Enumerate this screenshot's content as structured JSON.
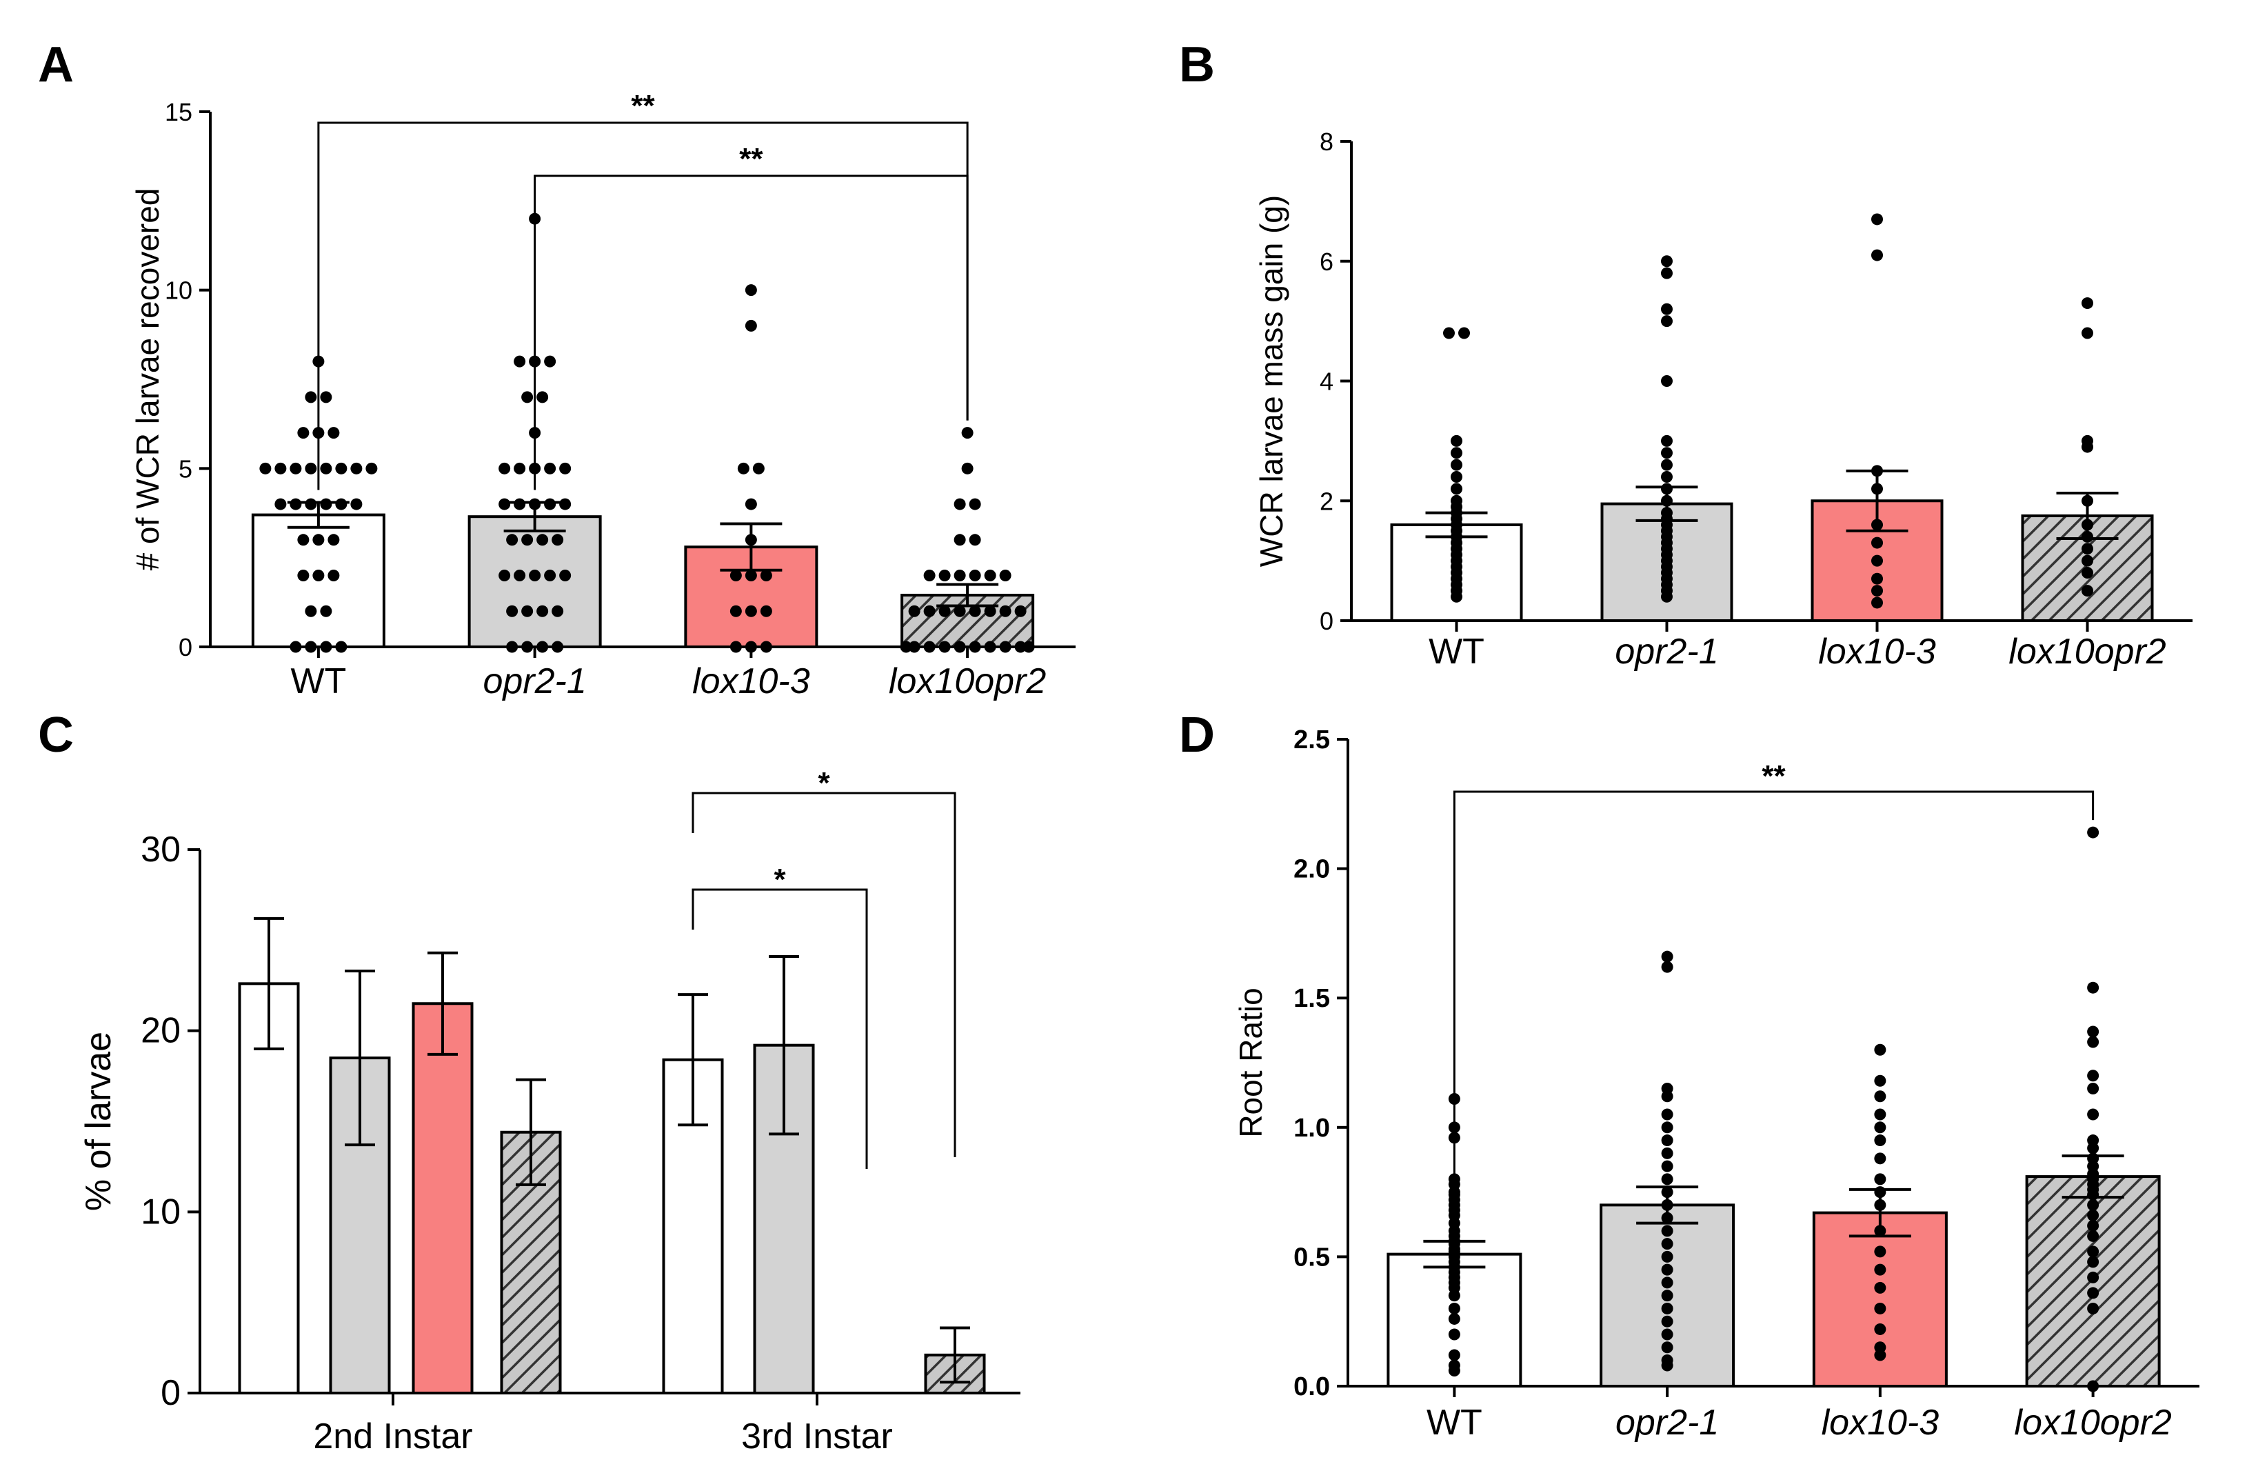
{
  "panels": {
    "A": "A",
    "B": "B",
    "C": "C",
    "D": "D"
  },
  "colors": {
    "wt": "#ffffff",
    "opr2_1": "#d3d3d3",
    "lox10_3": "#f88080",
    "lox10opr2": "hatched-gray"
  },
  "chart_data": [
    {
      "panel": "A",
      "type": "bar",
      "ylabel": "# of WCR larvae recovered",
      "ylim": [
        0,
        15
      ],
      "yticks": [
        0,
        5,
        10,
        15
      ],
      "categories": [
        "WT",
        "opr2-1",
        "lox10-3",
        "lox10opr2"
      ],
      "italic_categories": [
        false,
        true,
        true,
        true
      ],
      "values": [
        3.7,
        3.65,
        2.8,
        1.45
      ],
      "errors": [
        0.35,
        0.4,
        0.65,
        0.3
      ],
      "points": [
        [
          8,
          7,
          7,
          6,
          6,
          6,
          5,
          5,
          5,
          5,
          5,
          5,
          5,
          5,
          4,
          4,
          4,
          4,
          4,
          4,
          3,
          3,
          3,
          2,
          2,
          2,
          1,
          1,
          0,
          0,
          0,
          0
        ],
        [
          12,
          8,
          8,
          8,
          7,
          7,
          6,
          5,
          5,
          5,
          5,
          5,
          4,
          4,
          4,
          4,
          4,
          3,
          3,
          3,
          3,
          2,
          2,
          2,
          2,
          2,
          1,
          1,
          1,
          1,
          0,
          0,
          0,
          0
        ],
        [
          10,
          9,
          5,
          5,
          4,
          3,
          2,
          2,
          2,
          1,
          1,
          1,
          0,
          0,
          0
        ],
        [
          6,
          5,
          4,
          4,
          3,
          3,
          2,
          2,
          2,
          2,
          2,
          2,
          1,
          1,
          1,
          1,
          1,
          1,
          1,
          1,
          0,
          0,
          0,
          0,
          0,
          0,
          0,
          0,
          0,
          0
        ]
      ],
      "significance": [
        {
          "from": 0,
          "to": 3,
          "label": "**"
        },
        {
          "from": 1,
          "to": 3,
          "label": "**"
        }
      ]
    },
    {
      "panel": "B",
      "type": "bar",
      "ylabel": "WCR larvae mass gain (g)",
      "ylim": [
        0,
        8
      ],
      "yticks": [
        0,
        2,
        4,
        6,
        8
      ],
      "categories": [
        "WT",
        "opr2-1",
        "lox10-3",
        "lox10opr2"
      ],
      "italic_categories": [
        false,
        true,
        true,
        true
      ],
      "values": [
        1.6,
        1.95,
        2.0,
        1.75
      ],
      "errors": [
        0.2,
        0.28,
        0.5,
        0.38
      ],
      "points": [
        [
          4.8,
          4.8,
          3.0,
          2.8,
          2.6,
          2.4,
          2.2,
          2.0,
          1.9,
          1.8,
          1.7,
          1.6,
          1.5,
          1.4,
          1.3,
          1.2,
          1.1,
          1.0,
          0.9,
          0.8,
          0.7,
          0.6,
          0.5,
          0.4
        ],
        [
          6.0,
          5.8,
          5.2,
          5.0,
          4.0,
          3.0,
          2.8,
          2.6,
          2.4,
          2.2,
          2.0,
          1.8,
          1.7,
          1.6,
          1.5,
          1.4,
          1.3,
          1.2,
          1.1,
          1.0,
          0.9,
          0.8,
          0.7,
          0.6,
          0.5,
          0.4
        ],
        [
          6.7,
          6.1,
          2.5,
          2.2,
          1.6,
          1.3,
          1.0,
          0.7,
          0.5,
          0.3
        ],
        [
          5.3,
          4.8,
          3.0,
          2.9,
          2.0,
          1.6,
          1.4,
          1.2,
          1.0,
          0.8,
          0.5
        ]
      ],
      "significance": []
    },
    {
      "panel": "C",
      "type": "bar",
      "ylabel": "% of larvae",
      "ylim": [
        0,
        30
      ],
      "yticks": [
        0,
        10,
        20,
        30
      ],
      "categories": [
        "2nd Instar",
        "3rd Instar"
      ],
      "series": [
        {
          "values": [
            22.6,
            18.4
          ],
          "errors": [
            3.6,
            3.6
          ]
        },
        {
          "values": [
            18.5,
            19.2
          ],
          "errors": [
            4.8,
            4.9
          ]
        },
        {
          "values": [
            21.5,
            0
          ],
          "errors": [
            2.8,
            0
          ]
        },
        {
          "values": [
            14.4,
            2.1
          ],
          "errors": [
            2.9,
            1.5
          ]
        }
      ],
      "significance": [
        {
          "label": "*"
        },
        {
          "label": "*"
        }
      ]
    },
    {
      "panel": "D",
      "type": "bar",
      "ylabel": "Root Ratio",
      "ylim": [
        0,
        2.5
      ],
      "yticks": [
        "0.0",
        "0.5",
        "1.0",
        "1.5",
        "2.0",
        "2.5"
      ],
      "categories": [
        "WT",
        "opr2-1",
        "lox10-3",
        "lox10opr2"
      ],
      "italic_categories": [
        false,
        true,
        true,
        true
      ],
      "values": [
        0.51,
        0.7,
        0.67,
        0.81
      ],
      "errors": [
        0.05,
        0.07,
        0.09,
        0.08
      ],
      "points": [
        [
          1.11,
          1.0,
          0.96,
          0.8,
          0.78,
          0.75,
          0.74,
          0.72,
          0.7,
          0.68,
          0.66,
          0.63,
          0.6,
          0.58,
          0.56,
          0.55,
          0.53,
          0.52,
          0.5,
          0.48,
          0.46,
          0.44,
          0.42,
          0.4,
          0.38,
          0.35,
          0.3,
          0.26,
          0.2,
          0.12,
          0.08,
          0.06
        ],
        [
          1.66,
          1.62,
          1.15,
          1.12,
          1.05,
          1.0,
          0.95,
          0.9,
          0.85,
          0.8,
          0.75,
          0.7,
          0.65,
          0.6,
          0.55,
          0.5,
          0.45,
          0.4,
          0.35,
          0.3,
          0.25,
          0.2,
          0.15,
          0.1,
          0.08
        ],
        [
          1.3,
          1.18,
          1.12,
          1.05,
          1.0,
          0.95,
          0.88,
          0.8,
          0.75,
          0.7,
          0.6,
          0.52,
          0.45,
          0.38,
          0.3,
          0.22,
          0.15,
          0.12
        ],
        [
          2.14,
          1.54,
          1.37,
          1.33,
          1.2,
          1.15,
          1.05,
          0.95,
          0.92,
          0.88,
          0.85,
          0.82,
          0.8,
          0.78,
          0.76,
          0.74,
          0.7,
          0.66,
          0.62,
          0.58,
          0.52,
          0.48,
          0.42,
          0.36,
          0.3,
          0.0
        ]
      ],
      "significance": [
        {
          "from": 0,
          "to": 3,
          "label": "**"
        }
      ]
    }
  ]
}
